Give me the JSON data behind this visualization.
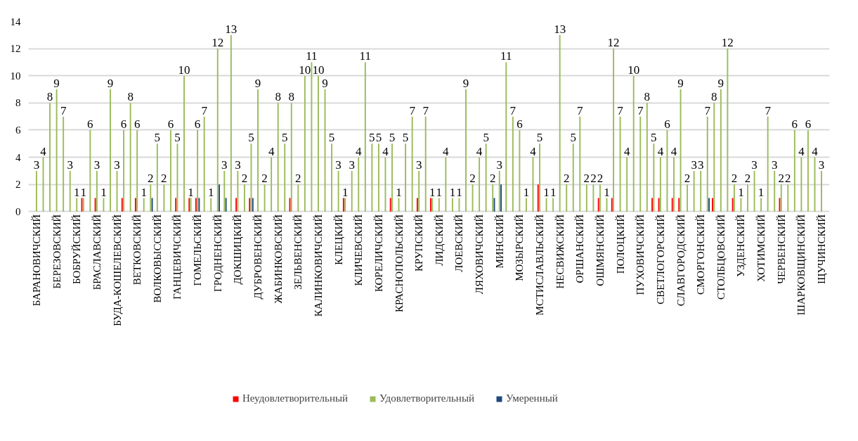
{
  "chart_data": {
    "type": "bar",
    "categories": [
      "БАРАНОВИЧСКИЙ",
      null,
      null,
      "БЕРЕЗОВСКИЙ",
      null,
      null,
      "БОБРУЙСКИЙ",
      null,
      null,
      "БРАСЛАВСКИЙ",
      null,
      null,
      "БУДА-КОШЕЛЕВСКИЙ",
      null,
      null,
      "ВЕТКОВСКИЙ",
      null,
      null,
      "ВОЛКОВЫССКИЙ",
      null,
      null,
      "ГАНЦЕВИЧСКИЙ",
      null,
      null,
      "ГОМЕЛЬСКИЙ",
      null,
      null,
      "ГРОДНЕНСКИЙ",
      null,
      null,
      "ДОКШИЦКИЙ",
      null,
      null,
      "ДУБРОВЕНСКИЙ",
      null,
      null,
      "ЖАБИНКОВСКИЙ",
      null,
      null,
      "ЗЕЛЬВЕНСКИЙ",
      null,
      null,
      "КАЛИНКОВИЧСКИЙ",
      null,
      null,
      "КЛЕЦКИЙ",
      null,
      null,
      "КЛИЧЕВСКИЙ",
      null,
      null,
      "КОРЕЛИЧСКИЙ",
      null,
      null,
      "КРАСНОПОЛЬСКИЙ",
      null,
      null,
      "КРУПСКИЙ",
      null,
      null,
      "ЛИДСКИЙ",
      null,
      null,
      "ЛОЕВСКИЙ",
      null,
      null,
      "ЛЯХОВИЧСКИЙ",
      null,
      null,
      "МИНСКИЙ",
      null,
      null,
      "МОЗЫРСКИЙ",
      null,
      null,
      "МСТИСЛАВЛЬСКИЙ",
      null,
      null,
      "НЕСВИЖСКИЙ",
      null,
      null,
      "ОРШАНСКИЙ",
      null,
      null,
      "ОШМЯНСКИЙ",
      null,
      null,
      "ПОЛОЦКИЙ",
      null,
      null,
      "ПУХОВИЧСКИЙ",
      null,
      null,
      "СВЕТЛОГОРСКИЙ",
      null,
      null,
      "СЛАВГОРОДСКИЙ",
      null,
      null,
      "СМОРГОНСКИЙ",
      null,
      null,
      "СТОЛБЦОВСКИЙ",
      null,
      null,
      "УЗДЕНСКИЙ",
      null,
      null,
      "ХОТИМСКИЙ",
      null,
      null,
      "ЧЕРВЕНСКИЙ",
      null,
      null,
      "ШАРКОВЩИНСКИЙ",
      null,
      null,
      "ЩУЧИНСКИЙ"
    ],
    "series": [
      {
        "name": "Неудовлетворительный",
        "color": "#ff0000",
        "values": [
          null,
          null,
          null,
          null,
          null,
          null,
          null,
          1,
          null,
          1,
          null,
          null,
          null,
          1,
          null,
          1,
          null,
          null,
          null,
          null,
          null,
          1,
          null,
          1,
          1,
          null,
          null,
          null,
          null,
          null,
          1,
          null,
          1,
          null,
          null,
          null,
          null,
          null,
          1,
          null,
          null,
          null,
          null,
          null,
          null,
          null,
          1,
          null,
          null,
          null,
          null,
          null,
          null,
          1,
          null,
          null,
          null,
          1,
          null,
          1,
          null,
          null,
          null,
          null,
          null,
          null,
          null,
          null,
          null,
          null,
          null,
          null,
          null,
          null,
          null,
          2,
          null,
          null,
          null,
          null,
          null,
          null,
          null,
          null,
          1,
          null,
          1,
          null,
          null,
          null,
          null,
          null,
          1,
          1,
          null,
          1,
          1,
          null,
          null,
          null,
          null,
          1,
          null,
          null,
          1,
          null,
          null,
          null,
          null,
          null,
          null,
          1,
          null,
          null,
          null,
          null,
          null,
          null
        ]
      },
      {
        "name": "Удовлетворительный",
        "color": "#9bbb59",
        "data_labels": true,
        "values": [
          3,
          4,
          8,
          9,
          7,
          3,
          1,
          1,
          6,
          3,
          1,
          9,
          3,
          6,
          8,
          6,
          1,
          2,
          5,
          2,
          6,
          5,
          10,
          1,
          6,
          7,
          1,
          12,
          3,
          13,
          3,
          2,
          5,
          9,
          2,
          4,
          8,
          5,
          8,
          2,
          10,
          11,
          10,
          9,
          5,
          3,
          1,
          3,
          4,
          11,
          5,
          5,
          4,
          5,
          1,
          5,
          7,
          3,
          7,
          1,
          1,
          4,
          1,
          1,
          9,
          2,
          4,
          5,
          2,
          3,
          11,
          7,
          6,
          1,
          4,
          5,
          1,
          1,
          13,
          2,
          5,
          7,
          2,
          2,
          2,
          1,
          12,
          7,
          4,
          10,
          7,
          8,
          5,
          4,
          6,
          4,
          9,
          2,
          3,
          3,
          7,
          8,
          9,
          12,
          2,
          1,
          2,
          3,
          1,
          7,
          3,
          2,
          2,
          6,
          4,
          6,
          4,
          3
        ]
      },
      {
        "name": "Умеренный",
        "color": "#1f497d",
        "values": [
          null,
          null,
          null,
          null,
          null,
          null,
          null,
          null,
          null,
          null,
          null,
          null,
          null,
          null,
          null,
          null,
          null,
          1,
          null,
          null,
          null,
          null,
          null,
          null,
          1,
          null,
          null,
          2,
          1,
          null,
          null,
          null,
          1,
          null,
          null,
          null,
          null,
          null,
          null,
          null,
          null,
          null,
          null,
          null,
          null,
          null,
          null,
          null,
          null,
          null,
          null,
          null,
          null,
          null,
          null,
          null,
          null,
          null,
          null,
          null,
          null,
          null,
          null,
          null,
          null,
          null,
          null,
          null,
          1,
          2,
          null,
          null,
          null,
          null,
          null,
          null,
          null,
          null,
          null,
          null,
          null,
          null,
          null,
          null,
          null,
          null,
          null,
          null,
          null,
          null,
          null,
          null,
          null,
          null,
          null,
          null,
          null,
          null,
          null,
          null,
          1,
          null,
          null,
          null,
          null,
          null,
          null,
          null,
          null,
          null,
          null,
          null,
          null,
          null,
          null,
          null,
          null,
          null
        ]
      }
    ],
    "ylim": [
      0,
      14
    ],
    "yticks": [
      0,
      2,
      4,
      6,
      8,
      10,
      12,
      14
    ],
    "grid": "y",
    "legend": "bottom"
  }
}
